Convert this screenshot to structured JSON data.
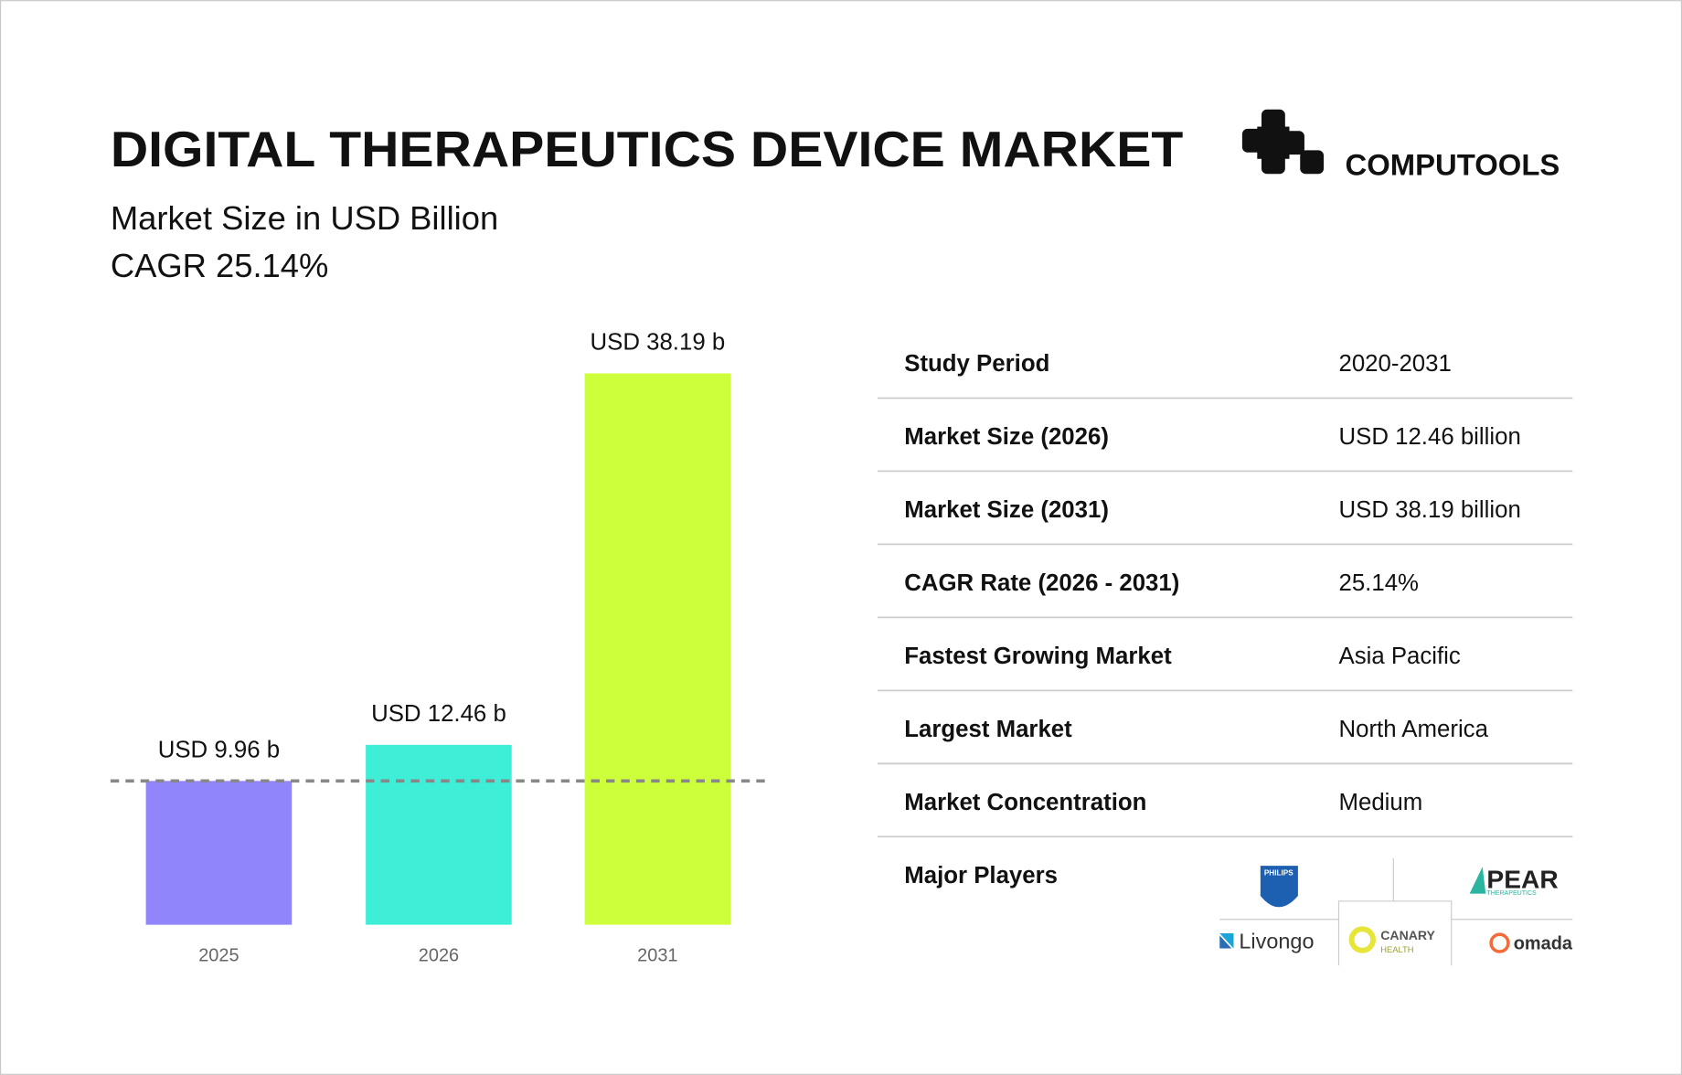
{
  "chart_data": {
    "type": "bar",
    "title": "DIGITAL THERAPEUTICS DEVICE MARKET",
    "subtitle": "Market Size in USD Billion",
    "annotation": "CAGR 25.14%",
    "categories": [
      "2025",
      "2026",
      "2031"
    ],
    "values": [
      9.96,
      12.46,
      38.19
    ],
    "value_labels": [
      "USD 9.96 b",
      "USD 12.46 b",
      "USD 38.19 b"
    ],
    "colors": [
      "#9185fc",
      "#3eeed6",
      "#cdff3a"
    ]
  },
  "brand": "COMPUTOOLS",
  "table": {
    "rows": [
      [
        "Study Period",
        "2020-2031"
      ],
      [
        "Market Size (2026)",
        "USD 12.46 billion"
      ],
      [
        "Market Size (2031)",
        "USD 38.19 billion"
      ],
      [
        "CAGR Rate (2026 - 2031)",
        "25.14%"
      ],
      [
        "Fastest Growing Market",
        "Asia Pacific"
      ],
      [
        "Largest Market",
        "North America"
      ],
      [
        "Market Concentration",
        "Medium"
      ]
    ]
  },
  "major_players": {
    "label": "Major Players",
    "logos": [
      "PHILIPS",
      "PEAR",
      "THERAPEUTICS",
      "Livongo",
      "CANARY",
      "HEALTH",
      "omada"
    ]
  }
}
